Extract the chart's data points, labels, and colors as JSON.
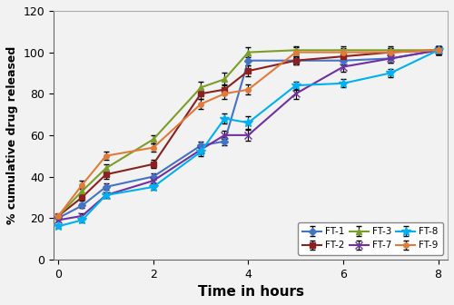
{
  "title": "",
  "xlabel": "Time in hours",
  "ylabel": "% cumulative drug released",
  "xlim": [
    -0.1,
    8.2
  ],
  "ylim": [
    0,
    120
  ],
  "yticks": [
    0,
    20,
    40,
    60,
    80,
    100,
    120
  ],
  "xticks": [
    0,
    2,
    4,
    6,
    8
  ],
  "series": [
    {
      "label": "FT-1",
      "color": "#4472C4",
      "marker": "D",
      "markersize": 4,
      "x": [
        0,
        0.5,
        1,
        2,
        3,
        3.5,
        4,
        5,
        6,
        7,
        8
      ],
      "y": [
        20,
        26,
        35,
        40,
        55,
        57,
        96,
        96,
        96,
        97,
        101
      ],
      "yerr": [
        0.8,
        1.2,
        1.5,
        1.5,
        2,
        2,
        2.5,
        2,
        2,
        2,
        2
      ]
    },
    {
      "label": "FT-2",
      "color": "#8B2020",
      "marker": "s",
      "markersize": 4,
      "x": [
        0,
        0.5,
        1,
        2,
        3,
        3.5,
        4,
        5,
        6,
        7,
        8
      ],
      "y": [
        21,
        30,
        41,
        46,
        80,
        82,
        91,
        96,
        98,
        100,
        101
      ],
      "yerr": [
        0.8,
        1.5,
        2,
        2,
        2.5,
        2.5,
        2.5,
        2,
        2,
        2,
        2
      ]
    },
    {
      "label": "FT-3",
      "color": "#7B9E2A",
      "marker": "^",
      "markersize": 4,
      "x": [
        0,
        0.5,
        1,
        2,
        3,
        3.5,
        4,
        5,
        6,
        7,
        8
      ],
      "y": [
        21,
        33,
        44,
        58,
        83,
        87,
        100,
        101,
        101,
        101,
        101
      ],
      "yerr": [
        0.8,
        1.5,
        2,
        2,
        3,
        3,
        2.5,
        2,
        2,
        2,
        2
      ]
    },
    {
      "label": "FT-7",
      "color": "#7030A0",
      "marker": "x",
      "markersize": 6,
      "linewidth": 1.5,
      "x": [
        0,
        0.5,
        1,
        2,
        3,
        3.5,
        4,
        5,
        6,
        7,
        8
      ],
      "y": [
        19,
        21,
        31,
        38,
        53,
        60,
        60,
        80,
        93,
        97,
        101
      ],
      "yerr": [
        0.8,
        1.2,
        1.5,
        1.5,
        2,
        2,
        2.5,
        2.5,
        2.5,
        2,
        2
      ]
    },
    {
      "label": "FT-8",
      "color": "#00B0F0",
      "marker": "*",
      "markersize": 7,
      "linewidth": 1.5,
      "x": [
        0,
        0.5,
        1,
        2,
        3,
        3.5,
        4,
        5,
        6,
        7,
        8
      ],
      "y": [
        16,
        19,
        31,
        35,
        52,
        68,
        66,
        84,
        85,
        90,
        101
      ],
      "yerr": [
        0.8,
        1.2,
        1.5,
        1.5,
        2,
        2.5,
        3,
        2,
        2,
        2,
        2
      ]
    },
    {
      "label": "FT-9",
      "color": "#E07B39",
      "marker": "o",
      "markersize": 4,
      "x": [
        0,
        0.5,
        1,
        2,
        3,
        3.5,
        4,
        5,
        6,
        7,
        8
      ],
      "y": [
        21,
        36,
        50,
        54,
        75,
        80,
        82,
        100,
        100,
        100,
        101
      ],
      "yerr": [
        0.8,
        2,
        2,
        2,
        2.5,
        2.5,
        2.5,
        2.5,
        2,
        2,
        2
      ]
    }
  ],
  "legend_loc": "lower right",
  "legend_ncol": 3,
  "figsize": [
    5.0,
    3.36
  ],
  "dpi": 100
}
